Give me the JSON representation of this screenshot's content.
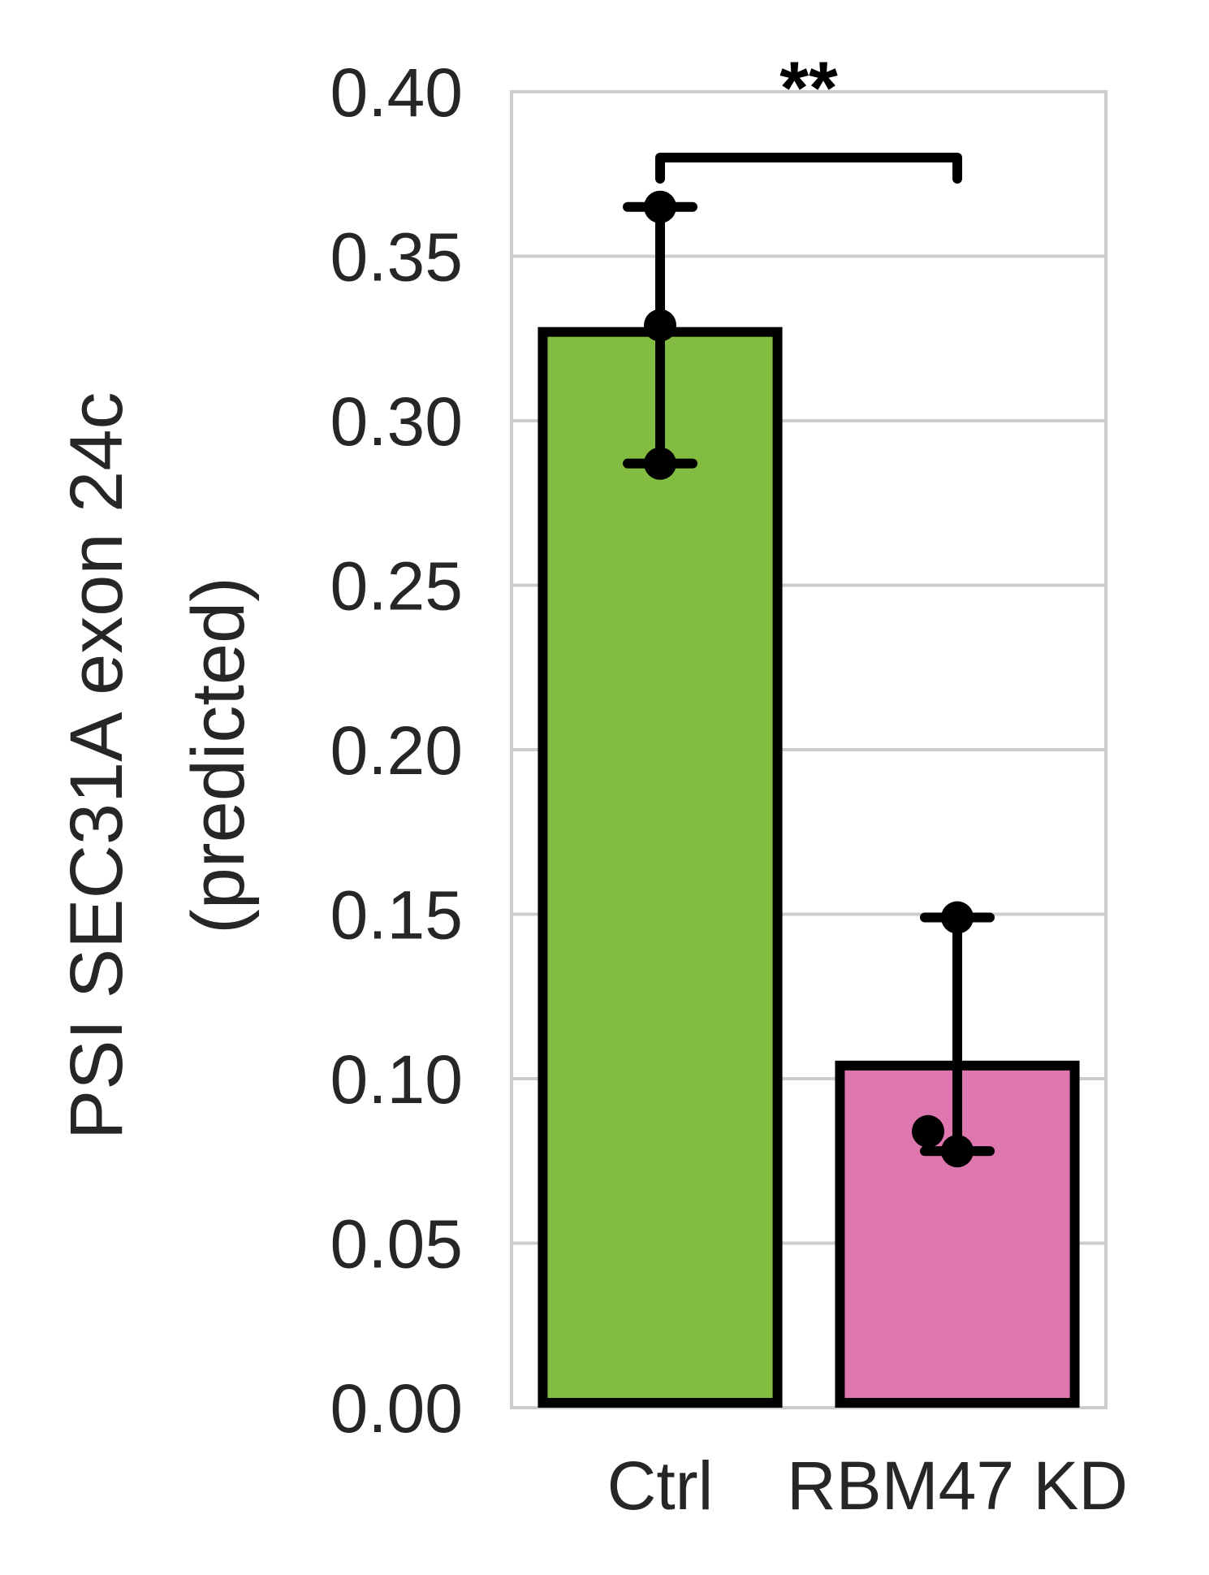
{
  "chart_data": {
    "type": "bar",
    "categories": [
      "Ctrl",
      "RBM47 KD"
    ],
    "values": [
      0.327,
      0.104
    ],
    "errors": [
      {
        "low": 0.287,
        "high": 0.365
      },
      {
        "low": 0.078,
        "high": 0.149
      }
    ],
    "points": [
      [
        0.365,
        0.329,
        0.287
      ],
      [
        0.149,
        0.084,
        0.078
      ]
    ],
    "colors": [
      "#82BC41",
      "#DE77AE"
    ],
    "edge_color": "#000000",
    "ylabel_line1": "PSI SEC31A exon 24c",
    "ylabel_line2": "(predicted)",
    "ylim": [
      0,
      0.4
    ],
    "yticks": [
      "0.00",
      "0.05",
      "0.10",
      "0.15",
      "0.20",
      "0.25",
      "0.30",
      "0.35",
      "0.40"
    ],
    "grid": true,
    "significance": {
      "label": "**",
      "between": [
        0,
        1
      ],
      "y": 0.38
    }
  }
}
